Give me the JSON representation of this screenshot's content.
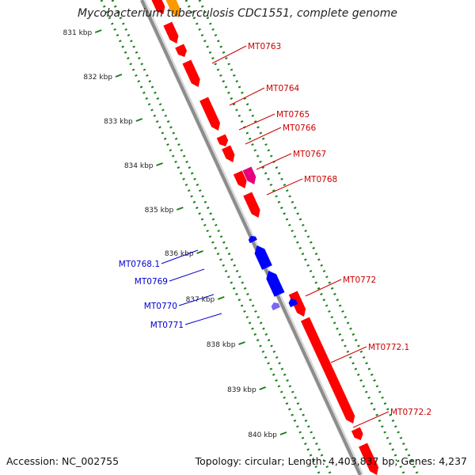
{
  "title": "Mycobacterium tuberculosis CDC1551, complete genome",
  "footer": {
    "accession": "Accession: NC_002755",
    "topology": "Topology: circular; Length: 4,403,837 bp; Genes: 4,237"
  },
  "colors": {
    "forward_gene": "#ff0000",
    "forward_gene_alt": "#e6007e",
    "reverse_gene": "#0000ff",
    "reverse_gene_alt": "#7b68ee",
    "orange_gene": "#ff9900",
    "tick": "#1a7f1a",
    "backbone": "#8c8c8c",
    "label_forward": "#cc0000",
    "label_reverse": "#0000cc"
  },
  "scale_labels": [
    "831 kbp",
    "832 kbp",
    "833 kbp",
    "834 kbp",
    "835 kbp",
    "836 kbp",
    "837 kbp",
    "838 kbp",
    "839 kbp",
    "840 kbp"
  ],
  "genes_forward": [
    {
      "label": "MT0763",
      "kind": "gene"
    },
    {
      "label": "MT0764",
      "kind": "gene"
    },
    {
      "label": "MT0765",
      "kind": "gene"
    },
    {
      "label": "MT0766",
      "kind": "gene"
    },
    {
      "label": "MT0767",
      "kind": "gene-alt"
    },
    {
      "label": "MT0768",
      "kind": "gene"
    },
    {
      "label": "MT0772",
      "kind": "gene"
    },
    {
      "label": "MT0772.1",
      "kind": "gene"
    },
    {
      "label": "MT0772.2",
      "kind": "gene"
    }
  ],
  "genes_reverse": [
    {
      "label": "MT0768.1",
      "kind": "gene"
    },
    {
      "label": "MT0769",
      "kind": "gene"
    },
    {
      "label": "MT0770",
      "kind": "gene"
    },
    {
      "label": "MT0771",
      "kind": "gene-alt"
    }
  ]
}
